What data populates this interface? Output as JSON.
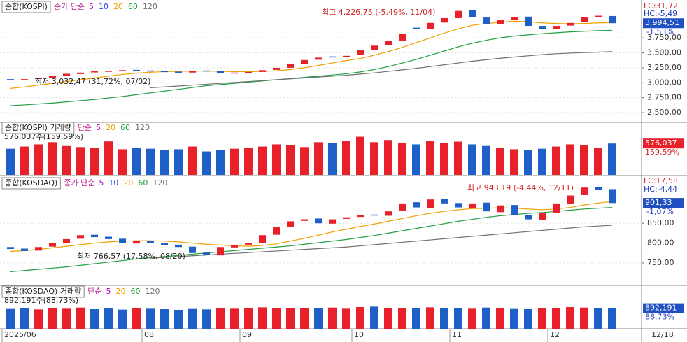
{
  "chart_data": [
    {
      "type": "candlestick",
      "title": "종합(KOSPI)",
      "ma_prefix": "종가 단순",
      "legend": [
        {
          "name": "5",
          "color": "#c000c0"
        },
        {
          "name": "10",
          "color": "#2040ff"
        }
      ],
      "up_color": "#e8202a",
      "down_color": "#1f5fc8",
      "open": [
        3060,
        3040,
        3065,
        3080,
        3115,
        3145,
        3175,
        3190,
        3200,
        3215,
        3205,
        3195,
        3185,
        3170,
        3205,
        3195,
        3160,
        3175,
        3180,
        3215,
        3250,
        3310,
        3385,
        3440,
        3425,
        3470,
        3545,
        3625,
        3700,
        3920,
        3900,
        4005,
        4080,
        4210,
        4090,
        3975,
        4055,
        4105,
        3950,
        3900,
        3955,
        4010,
        4095,
        4115
      ],
      "close": [
        3040,
        3060,
        3080,
        3110,
        3150,
        3170,
        3190,
        3200,
        3210,
        3200,
        3190,
        3180,
        3170,
        3200,
        3190,
        3160,
        3170,
        3180,
        3210,
        3250,
        3310,
        3380,
        3420,
        3430,
        3450,
        3550,
        3620,
        3700,
        3820,
        3900,
        4000,
        4080,
        4200,
        4100,
        3980,
        4050,
        4100,
        3950,
        3900,
        3950,
        4000,
        4100,
        4120,
        3995
      ],
      "series": [
        {
          "name": "20",
          "color": "#f0a000",
          "values": [
            2905,
            2930,
            2960,
            2990,
            3020,
            3050,
            3080,
            3110,
            3140,
            3160,
            3175,
            3185,
            3190,
            3195,
            3195,
            3190,
            3185,
            3185,
            3190,
            3200,
            3220,
            3250,
            3290,
            3330,
            3370,
            3405,
            3460,
            3520,
            3590,
            3670,
            3750,
            3830,
            3900,
            3960,
            3990,
            4010,
            4030,
            4020,
            4000,
            3990,
            3985,
            3990,
            4000,
            4005
          ]
        },
        {
          "name": "60",
          "color": "#20a040",
          "values": [
            2616,
            2630,
            2645,
            2660,
            2680,
            2700,
            2720,
            2745,
            2770,
            2800,
            2830,
            2860,
            2890,
            2920,
            2950,
            2970,
            2990,
            3010,
            3030,
            3050,
            3070,
            3090,
            3110,
            3130,
            3150,
            3180,
            3220,
            3270,
            3330,
            3390,
            3460,
            3530,
            3600,
            3660,
            3710,
            3750,
            3780,
            3800,
            3820,
            3835,
            3850,
            3860,
            3870,
            3877
          ]
        },
        {
          "name": "120",
          "color": "#707070",
          "values": [
            null,
            null,
            null,
            null,
            null,
            null,
            null,
            null,
            null,
            null,
            2917,
            2930,
            2945,
            2960,
            2975,
            2990,
            3005,
            3020,
            3035,
            3050,
            3065,
            3080,
            3095,
            3110,
            3125,
            3145,
            3165,
            3190,
            3215,
            3240,
            3270,
            3300,
            3330,
            3360,
            3385,
            3410,
            3430,
            3450,
            3470,
            3485,
            3495,
            3505,
            3512,
            3519
          ]
        }
      ],
      "ylim": [
        2360,
        4360
      ],
      "yticks": [
        {
          "value": 2500,
          "label": "2,500,00"
        },
        {
          "value": 2750,
          "label": "2,750,00"
        },
        {
          "value": 3000,
          "label": "3,000,00"
        },
        {
          "value": 3250,
          "label": "3,250,00"
        },
        {
          "value": 3500,
          "label": "3,500,00"
        },
        {
          "value": 3750,
          "label": "3,750,00"
        }
      ],
      "last": {
        "value": 3994.51,
        "label": "3,994,51"
      },
      "change": "-1,53%",
      "lc": "LC:31,72",
      "hc": "HC:-5,49",
      "high_note": "최고 4,226,75 (-5,49%, 11/04)",
      "low_note": "최저 3,032,47 (31,72%, 07/02)"
    },
    {
      "type": "bar",
      "title": "종합(KOSPI) 거래량",
      "ma_prefix": "단순",
      "legend": [
        {
          "name": "5",
          "color": "#c000c0"
        },
        {
          "name": "20",
          "color": "#f0a000"
        },
        {
          "name": "60",
          "color": "#20a040"
        },
        {
          "name": "120",
          "color": "#707070"
        }
      ],
      "values": [
        480000,
        520000,
        560000,
        600000,
        530000,
        510000,
        490000,
        615000,
        470000,
        500000,
        480000,
        450000,
        470000,
        520000,
        430000,
        460000,
        480000,
        500000,
        520000,
        560000,
        540000,
        510000,
        600000,
        580000,
        620000,
        700000,
        600000,
        640000,
        580000,
        560000,
        620000,
        590000,
        610000,
        560000,
        530000,
        500000,
        470000,
        450000,
        480000,
        520000,
        560000,
        540000,
        500000,
        576037
      ],
      "ylim": [
        0,
        900000
      ],
      "info": "576,037주(159,59%)",
      "last": {
        "value": 576037,
        "label": "576,037"
      },
      "pct": "159,59%"
    },
    {
      "type": "candlestick",
      "title": "종합(KOSDAQ)",
      "ma_prefix": "종가 단순",
      "legend": [
        {
          "name": "5",
          "color": "#c000c0"
        },
        {
          "name": "10",
          "color": "#2040ff"
        }
      ],
      "up_color": "#e8202a",
      "down_color": "#1f5fc8",
      "open": [
        790,
        786,
        781,
        791,
        801,
        811,
        821,
        816,
        811,
        799,
        806,
        801,
        796,
        791,
        776,
        769,
        789,
        796,
        801,
        821,
        841,
        856,
        862,
        849,
        861,
        866,
        872,
        869,
        881,
        903,
        889,
        912,
        901,
        889,
        902,
        878,
        896,
        871,
        859,
        876,
        899,
        921,
        941,
        936
      ],
      "close": [
        785,
        780,
        790,
        800,
        810,
        820,
        815,
        810,
        800,
        805,
        800,
        795,
        790,
        775,
        770,
        790,
        795,
        800,
        820,
        840,
        855,
        860,
        850,
        860,
        865,
        870,
        870,
        880,
        900,
        890,
        910,
        900,
        890,
        900,
        880,
        895,
        870,
        860,
        875,
        900,
        920,
        940,
        935,
        901
      ],
      "series": [
        {
          "name": "20",
          "color": "#f0a000",
          "values": [
            779,
            781,
            784,
            788,
            792,
            796,
            800,
            803,
            805,
            806,
            806,
            805,
            803,
            800,
            797,
            795,
            793,
            792,
            794,
            798,
            805,
            812,
            820,
            828,
            835,
            842,
            848,
            855,
            862,
            869,
            875,
            880,
            884,
            887,
            888,
            889,
            888,
            886,
            884,
            886,
            890,
            896,
            901,
            905
          ]
        },
        {
          "name": "60",
          "color": "#20a040",
          "values": [
            728,
            731,
            734,
            737,
            740,
            744,
            748,
            752,
            756,
            760,
            763,
            766,
            769,
            772,
            775,
            778,
            781,
            784,
            787,
            790,
            793,
            797,
            801,
            805,
            809,
            814,
            819,
            825,
            831,
            837,
            843,
            849,
            855,
            860,
            865,
            869,
            872,
            875,
            877,
            880,
            883,
            886,
            888,
            890
          ]
        },
        {
          "name": "120",
          "color": "#707070",
          "values": [
            null,
            null,
            null,
            null,
            null,
            null,
            null,
            null,
            null,
            null,
            762,
            764,
            766,
            768,
            770,
            772,
            774,
            776,
            778,
            780,
            782,
            784,
            786,
            788,
            790,
            793,
            796,
            799,
            802,
            805,
            808,
            811,
            814,
            817,
            820,
            823,
            826,
            829,
            832,
            835,
            838,
            841,
            843,
            845
          ]
        }
      ],
      "ylim": [
        697,
        965
      ],
      "yticks": [
        {
          "value": 750,
          "label": "750,00"
        },
        {
          "value": 800,
          "label": "800,00"
        },
        {
          "value": 850,
          "label": "850,00"
        }
      ],
      "last": {
        "value": 901.33,
        "label": "901,33"
      },
      "change": "-1,07%",
      "lc": "LC:17,58",
      "hc": "HC:-4,44",
      "high_note": "최고 943,19 (-4,44%, 12/11)",
      "low_note": "최저 766,57 (17,58%, 08/20)"
    },
    {
      "type": "bar",
      "title": "종합(KOSDAQ) 거래량",
      "ma_prefix": "단순",
      "legend": [
        {
          "name": "5",
          "color": "#c000c0"
        },
        {
          "name": "20",
          "color": "#f0a000"
        },
        {
          "name": "60",
          "color": "#20a040"
        },
        {
          "name": "120",
          "color": "#707070"
        }
      ],
      "values": [
        860000,
        880000,
        840000,
        900000,
        870000,
        920000,
        850000,
        880000,
        830000,
        900000,
        870000,
        850000,
        820000,
        860000,
        840000,
        880000,
        870000,
        900000,
        930000,
        890000,
        910000,
        880000,
        900000,
        920000,
        870000,
        940000,
        960000,
        900000,
        910000,
        880000,
        930000,
        900000,
        890000,
        870000,
        920000,
        880000,
        860000,
        850000,
        880000,
        900000,
        940000,
        920000,
        910000,
        892191
      ],
      "ylim": [
        0,
        1700000
      ],
      "info": "892,191주(88,73%)",
      "last": {
        "value": 892191,
        "label": "892,191"
      },
      "pct": "88,73%",
      "categories": [
        "2025/06",
        null,
        null,
        null,
        null,
        null,
        null,
        null,
        null,
        null,
        "08",
        null,
        null,
        null,
        null,
        null,
        null,
        "09",
        null,
        null,
        null,
        null,
        null,
        null,
        null,
        "10",
        null,
        null,
        null,
        null,
        null,
        null,
        "11",
        null,
        null,
        null,
        null,
        null,
        null,
        "12",
        null,
        null,
        null,
        null
      ],
      "x_end_label": "12/18"
    }
  ]
}
